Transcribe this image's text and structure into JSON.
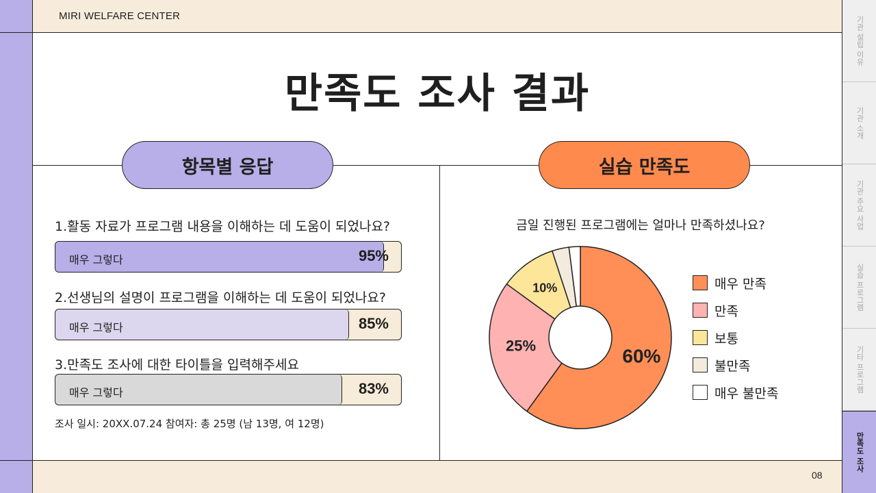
{
  "brand": "MIRI WELFARE CENTER",
  "title": "만족도 조사 결과",
  "left_section": {
    "heading": "항목별 응답",
    "items": [
      {
        "question": "1.활동 자료가 프로그램 내용을 이해하는 데 도움이 되었나요?",
        "answer": "매우 그렇다",
        "value_label": "95%",
        "value": 95,
        "color": "#b8aee8"
      },
      {
        "question": "2.선생님의 설명이 프로그램을 이해하는 데 도움이 되었나요?",
        "answer": "매우 그렇다",
        "value_label": "85%",
        "value": 85,
        "color": "#dcd7ee"
      },
      {
        "question": "3.만족도 조사에 대한 타이틀을 입력해주세요",
        "answer": "매우 그렇다",
        "value_label": "83%",
        "value": 83,
        "color": "#d9d9d9"
      }
    ],
    "note": "조사 일시: 20XX.07.24 참여자: 총 25명 (남 13명, 여 12명)"
  },
  "right_section": {
    "heading": "실습 만족도",
    "question": "금일 진행된 프로그램에는 얼마나 만족하셨나요?"
  },
  "chart_data": {
    "type": "pie",
    "donut": true,
    "slices": [
      {
        "label": "매우 만족",
        "value": 60,
        "display": "60%",
        "color": "#ff8f57"
      },
      {
        "label": "만족",
        "value": 25,
        "display": "25%",
        "color": "#ffb2b2"
      },
      {
        "label": "보통",
        "value": 10,
        "display": "10%",
        "color": "#fde69a"
      },
      {
        "label": "불만족",
        "value": 3,
        "display": "",
        "color": "#f3ebdd"
      },
      {
        "label": "매우 불만족",
        "value": 2,
        "display": "",
        "color": "#ffffff"
      }
    ],
    "legend_position": "right"
  },
  "nav_tabs": [
    "기관 설립 이유",
    "기관 소개",
    "기관 주요 사업",
    "실습 프로그램",
    "기타 프로그램",
    "만족도 조사"
  ],
  "active_tab": 5,
  "page_number": "08"
}
